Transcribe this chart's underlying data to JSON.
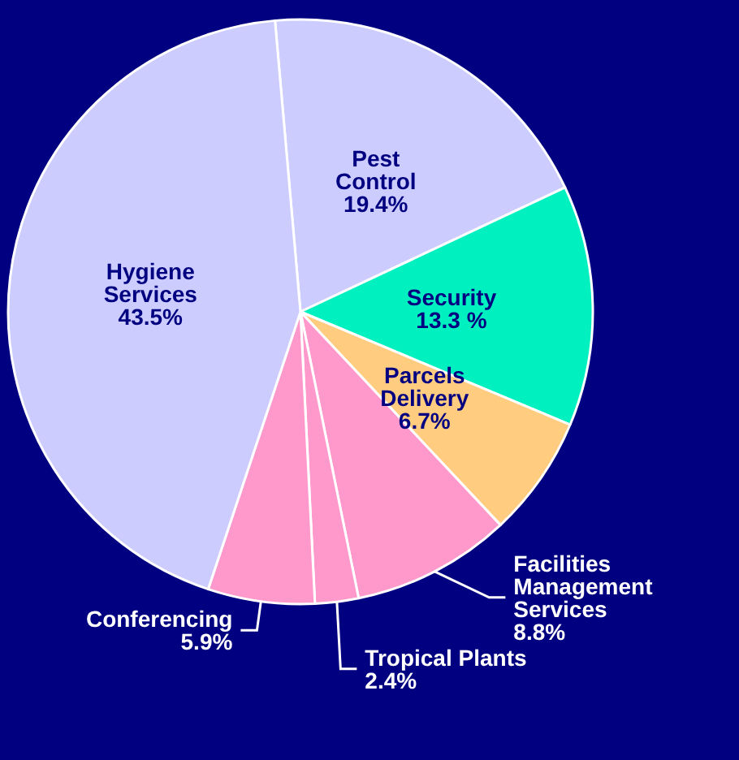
{
  "chart_data": {
    "type": "pie",
    "categories": [
      "Pest Control",
      "Security",
      "Parcels Delivery",
      "Facilities Management Services",
      "Tropical Plants",
      "Conferencing",
      "Hygiene Services"
    ],
    "values": [
      19.4,
      13.3,
      6.7,
      8.8,
      2.4,
      5.9,
      43.5
    ],
    "colors": [
      "#ccccff",
      "#00f0c0",
      "#ffcc80",
      "#ff99cc",
      "#ff99cc",
      "#ff99cc",
      "#ccccff"
    ],
    "value_labels": [
      "19.4%",
      "13.3 %",
      "6.7%",
      "8.8%",
      "2.4%",
      "5.9%",
      "43.5%"
    ]
  }
}
